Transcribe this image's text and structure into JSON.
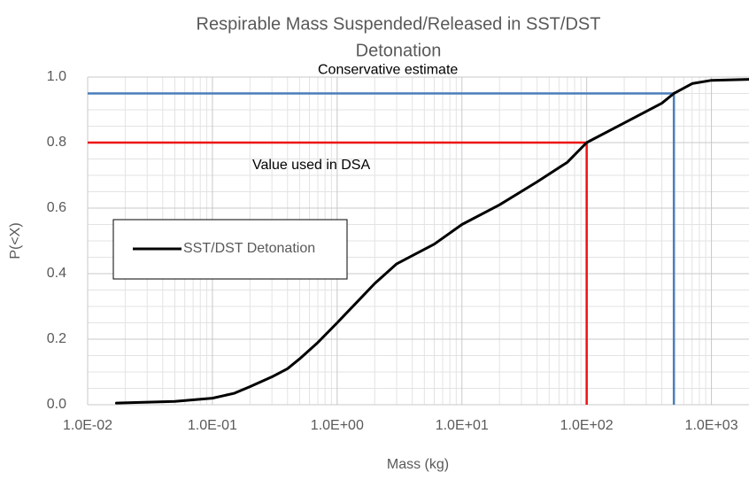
{
  "chart_data": {
    "type": "line",
    "title": [
      "Respirable Mass Suspended/Released in SST/DST",
      "Detonation"
    ],
    "x_label": "Mass (kg)",
    "y_label": "P(<X)",
    "x_log": true,
    "xlim": [
      0.01,
      2000
    ],
    "ylim": [
      0,
      1
    ],
    "xticks": [
      {
        "value": 0.01,
        "label": "1.0E-02"
      },
      {
        "value": 0.1,
        "label": "1.0E-01"
      },
      {
        "value": 1,
        "label": "1.0E+00"
      },
      {
        "value": 10,
        "label": "1.0E+01"
      },
      {
        "value": 100,
        "label": "1.0E+02"
      },
      {
        "value": 1000,
        "label": "1.0E+03"
      }
    ],
    "yticks": [
      {
        "value": 0,
        "label": "0.0"
      },
      0.2,
      0.4,
      0.6,
      0.8,
      {
        "value": 1,
        "label": "1.0"
      }
    ],
    "grid": true,
    "minor_grid": true,
    "legend": "left",
    "series": [
      {
        "name": "SST/DST Detonation",
        "color": "#000000",
        "x": [
          0.017,
          0.05,
          0.1,
          0.15,
          0.2,
          0.3,
          0.4,
          0.5,
          0.7,
          1.0,
          1.5,
          2.0,
          3.0,
          4.0,
          6.0,
          10,
          20,
          40,
          70,
          100,
          200,
          400,
          500,
          700,
          1000,
          2000
        ],
        "values": [
          0.005,
          0.01,
          0.02,
          0.035,
          0.055,
          0.085,
          0.11,
          0.14,
          0.19,
          0.25,
          0.32,
          0.37,
          0.43,
          0.455,
          0.49,
          0.55,
          0.61,
          0.68,
          0.74,
          0.8,
          0.86,
          0.92,
          0.95,
          0.98,
          0.99,
          0.993
        ]
      }
    ],
    "reference_lines": [
      {
        "x": 500,
        "y": 0.95,
        "color": "#4a7ebb",
        "label": "Conservative estimate"
      },
      {
        "x": 100,
        "y": 0.8,
        "color": "#ee1111",
        "label": "Value used in DSA"
      }
    ]
  }
}
